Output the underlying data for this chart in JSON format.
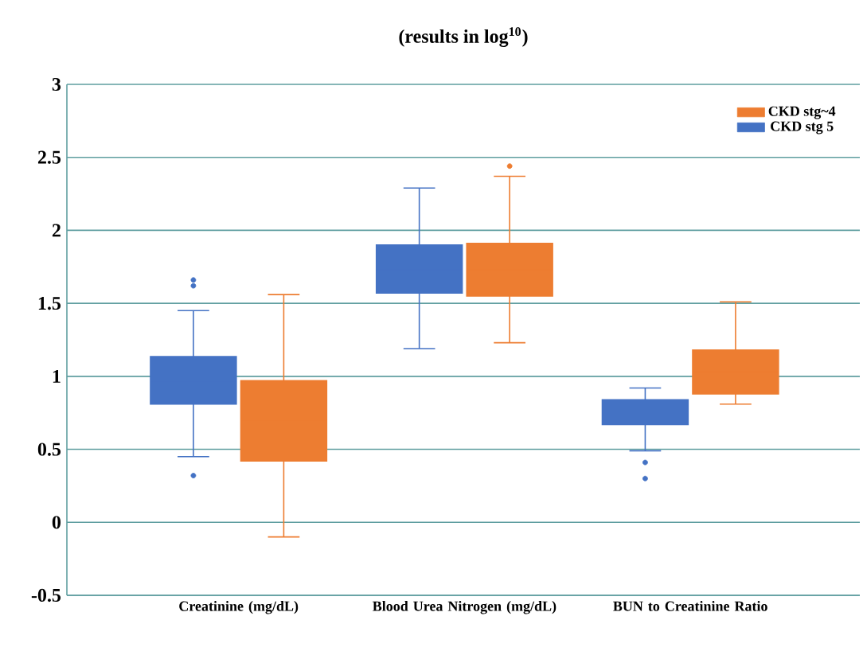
{
  "chart_data": {
    "type": "box",
    "title": "(results in log$^{10}$)",
    "categories": [
      "Creatinine (mg/dL)",
      "Blood Urea Nitrogen (mg/dL)",
      "BUN to Creatinine Ratio"
    ],
    "series": [
      {
        "name": "CKD stg 5",
        "color": "#4472c4",
        "boxes": [
          {
            "low": 0.45,
            "q1": 0.81,
            "median": 0.97,
            "q3": 1.135,
            "high": 1.45,
            "outliers": [
              1.66,
              1.62,
              0.32
            ]
          },
          {
            "low": 1.19,
            "q1": 1.57,
            "median": 1.73,
            "q3": 1.9,
            "high": 2.29
          },
          {
            "low": 0.49,
            "q1": 0.67,
            "median": 0.75,
            "q3": 0.84,
            "high": 0.92,
            "outliers": [
              0.41,
              0.3
            ]
          }
        ]
      },
      {
        "name": "CKD stg~4",
        "color": "#ed7d31",
        "boxes": [
          {
            "low": -0.1,
            "q1": 0.42,
            "median": 0.7,
            "q3": 0.97,
            "high": 1.56
          },
          {
            "low": 1.23,
            "q1": 1.55,
            "median": 1.73,
            "q3": 1.91,
            "high": 2.37,
            "outliers": [
              2.44
            ]
          },
          {
            "low": 0.81,
            "q1": 0.88,
            "median": 1.03,
            "q3": 1.18,
            "high": 1.51
          }
        ]
      }
    ],
    "ylim": [
      -0.5,
      3
    ],
    "yticks": [
      -0.5,
      0,
      0.5,
      1,
      1.5,
      2,
      2.5,
      3
    ],
    "grid": "y",
    "legend": "top right"
  }
}
